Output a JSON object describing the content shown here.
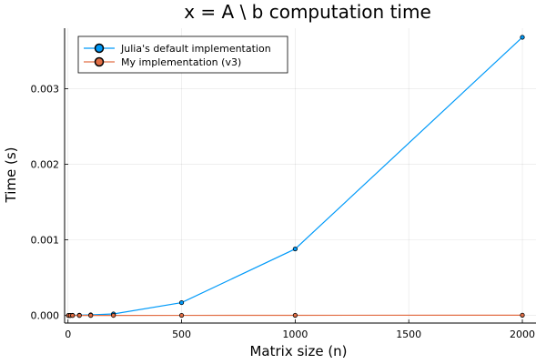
{
  "chart_data": {
    "type": "line",
    "title": "x = A \\ b computation time",
    "xlabel": "Matrix size (n)",
    "ylabel": "Time (s)",
    "xlim": [
      -15,
      2060
    ],
    "ylim": [
      -0.0001,
      0.0038
    ],
    "x_ticks": [
      0,
      500,
      1000,
      1500,
      2000
    ],
    "x_tick_labels": [
      "0",
      "500",
      "1000",
      "1500",
      "2000"
    ],
    "y_ticks": [
      0,
      0.001,
      0.002,
      0.003
    ],
    "y_tick_labels": [
      "0.000",
      "0.001",
      "0.002",
      "0.003"
    ],
    "grid": true,
    "legend_position": "top-left",
    "series": [
      {
        "name": "Julia's default implementation",
        "color": "#009af9",
        "x": [
          2,
          10,
          20,
          50,
          100,
          200,
          500,
          1000,
          2000
        ],
        "y": [
          5e-07,
          1e-06,
          2e-06,
          4e-06,
          8e-06,
          2e-05,
          0.00017,
          0.00088,
          0.00368
        ]
      },
      {
        "name": "My implementation (v3)",
        "color": "#e26f46",
        "x": [
          2,
          10,
          20,
          50,
          100,
          200,
          500,
          1000,
          2000
        ],
        "y": [
          2e-07,
          4e-07,
          6e-07,
          8e-07,
          1e-06,
          1.2e-06,
          1.8e-06,
          2.5e-06,
          4e-06
        ]
      }
    ]
  }
}
